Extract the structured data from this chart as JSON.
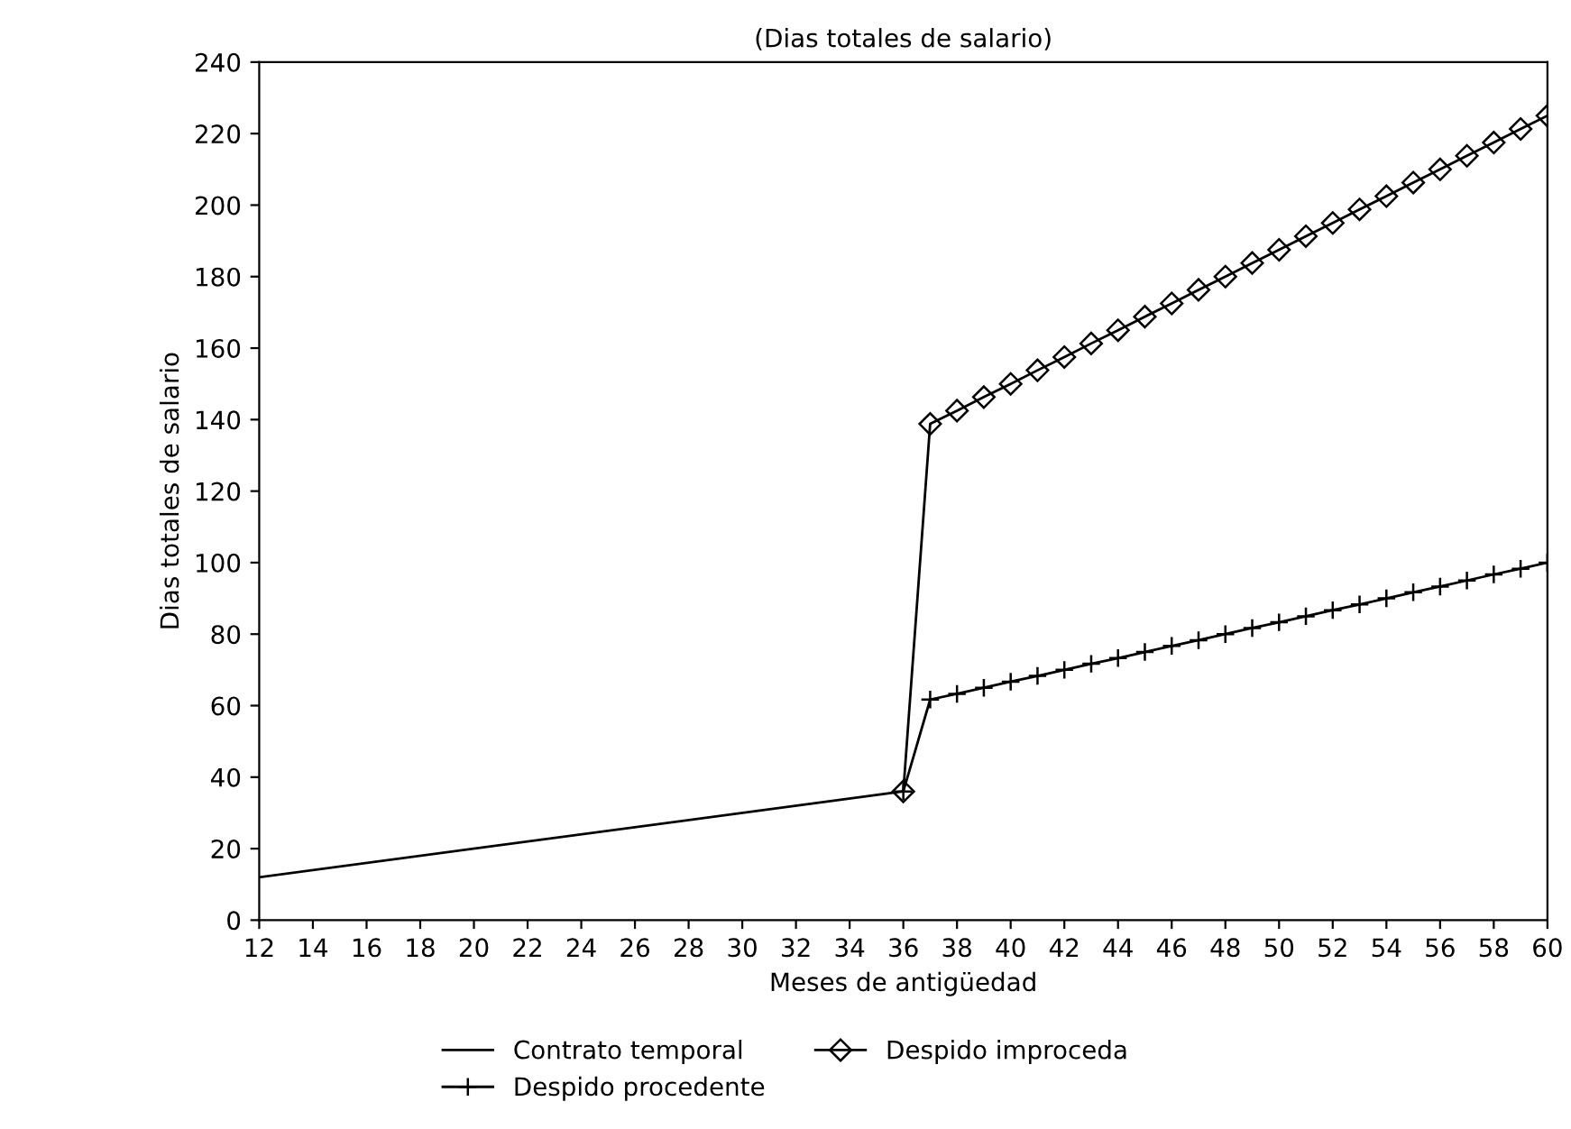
{
  "chart_data": {
    "type": "line",
    "title": "(Dias totales de salario)",
    "xlabel": "Meses de antigüedad",
    "ylabel": "Dias totales de salario",
    "xlim": [
      12,
      60
    ],
    "ylim": [
      0,
      240
    ],
    "xticks": [
      12,
      14,
      16,
      18,
      20,
      22,
      24,
      26,
      28,
      30,
      32,
      34,
      36,
      38,
      40,
      42,
      44,
      46,
      48,
      50,
      52,
      54,
      56,
      58,
      60
    ],
    "yticks": [
      0,
      20,
      40,
      60,
      80,
      100,
      120,
      140,
      160,
      180,
      200,
      220,
      240
    ],
    "grid": false,
    "legend": "bottom",
    "series": [
      {
        "name": "Contrato temporal",
        "color": "#000000",
        "x": [
          12,
          36
        ],
        "values": [
          12,
          36
        ]
      },
      {
        "name": "Despido procedente",
        "color": "#000000",
        "marker": "cross",
        "x": [
          36,
          37,
          38,
          39,
          40,
          41,
          42,
          43,
          44,
          45,
          46,
          47,
          48,
          49,
          50,
          51,
          52,
          53,
          54,
          55,
          56,
          57,
          58,
          59,
          60
        ],
        "values": [
          36,
          61.7,
          63.3,
          65,
          66.7,
          68.3,
          70,
          71.7,
          73.3,
          75,
          76.7,
          78.3,
          80,
          81.7,
          83.3,
          85,
          86.7,
          88.3,
          90,
          91.7,
          93.3,
          95,
          96.7,
          98.3,
          100
        ]
      },
      {
        "name": "Despido improceda",
        "color": "#000000",
        "marker": "diamond",
        "x": [
          36,
          37,
          38,
          39,
          40,
          41,
          42,
          43,
          44,
          45,
          46,
          47,
          48,
          49,
          50,
          51,
          52,
          53,
          54,
          55,
          56,
          57,
          58,
          59,
          60
        ],
        "values": [
          36,
          138.8,
          142.5,
          146.3,
          150,
          153.8,
          157.5,
          161.3,
          165,
          168.8,
          172.5,
          176.3,
          180,
          183.8,
          187.5,
          191.3,
          195,
          198.8,
          202.5,
          206.3,
          210,
          213.8,
          217.5,
          221.3,
          225
        ]
      }
    ]
  }
}
